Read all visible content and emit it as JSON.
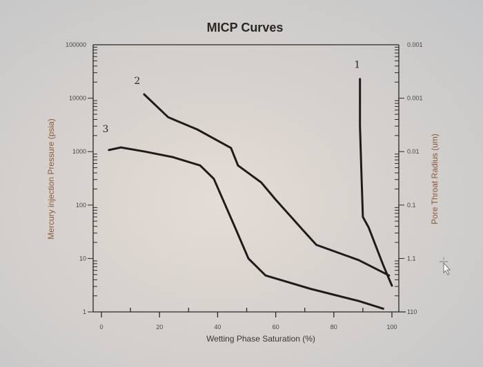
{
  "chart_data": {
    "type": "line",
    "title": "MICP Curves",
    "xlabel": "Wetting Phase Saturation (%)",
    "ylabel": "Mercury injection Pressure (psia)",
    "y2label": "Pore Throat Radius (um)",
    "xlim": [
      0,
      100
    ],
    "ylim": [
      1,
      100000
    ],
    "yscale": "log",
    "grid": false,
    "xticks": [
      "0",
      "20",
      "40",
      "60",
      "80",
      "100"
    ],
    "yticks": [
      "100000",
      "10000",
      "1000",
      "100",
      "10",
      "1"
    ],
    "y2ticks": [
      "0.001",
      "0.001",
      "0.01",
      "0.1",
      "1.1",
      "110"
    ],
    "series": [
      {
        "label": "1",
        "x": [
          89,
          89,
          89.5,
          90,
          92,
          97,
          100
        ],
        "y": [
          22900,
          3000,
          400,
          60,
          38,
          7.5,
          3.1
        ]
      },
      {
        "label": "2",
        "x": [
          14.7,
          23,
          33,
          44.6,
          47,
          55,
          60,
          69.6,
          74,
          88.6,
          99
        ],
        "y": [
          11800,
          4400,
          2600,
          1170,
          550,
          265,
          126,
          33,
          18,
          9.3,
          4.8
        ]
      },
      {
        "label": "3",
        "x": [
          2.6,
          6.7,
          15,
          24.5,
          34,
          38.7,
          46,
          50.6,
          56.5,
          72,
          88.6,
          97
        ],
        "y": [
          1070,
          1200,
          1000,
          790,
          550,
          310,
          38,
          10,
          4.8,
          2.7,
          1.6,
          1.15
        ]
      }
    ]
  },
  "colors": {
    "curve": "#1e1b1a",
    "axis_label": "#8b5a3c"
  },
  "cursor_icon": "move-cursor-icon"
}
